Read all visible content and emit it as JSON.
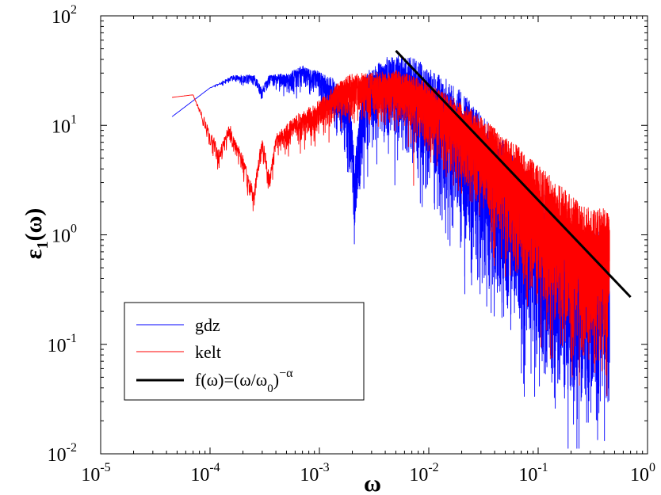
{
  "chart_data": {
    "type": "line",
    "xscale": "log",
    "yscale": "log",
    "xlim": [
      1e-05,
      1
    ],
    "ylim": [
      0.01,
      100
    ],
    "xticks": [
      {
        "base": "10",
        "exp": "-5",
        "value": 1e-05
      },
      {
        "base": "10",
        "exp": "-4",
        "value": 0.0001
      },
      {
        "base": "10",
        "exp": "-3",
        "value": 0.001
      },
      {
        "base": "10",
        "exp": "-2",
        "value": 0.01
      },
      {
        "base": "10",
        "exp": "-1",
        "value": 0.1
      },
      {
        "base": "10",
        "exp": "0",
        "value": 1
      }
    ],
    "yticks": [
      {
        "base": "10",
        "exp": "-2",
        "value": 0.01
      },
      {
        "base": "10",
        "exp": "-1",
        "value": 0.1
      },
      {
        "base": "10",
        "exp": "0",
        "value": 1
      },
      {
        "base": "10",
        "exp": "1",
        "value": 10
      },
      {
        "base": "10",
        "exp": "2",
        "value": 100
      }
    ],
    "xlabel": "ω",
    "ylabel_main": "ε",
    "ylabel_sub": "1",
    "ylabel_rest": "(ω)",
    "grid": false,
    "legend_position": "lower-left",
    "series": [
      {
        "name": "gdz",
        "color": "#0000ff",
        "style": "noisy",
        "points": [
          [
            4.5e-05,
            12
          ],
          [
            0.0001,
            22
          ],
          [
            0.00016,
            27
          ],
          [
            0.00025,
            27
          ],
          [
            0.0003,
            20
          ],
          [
            0.00035,
            27
          ],
          [
            0.0005,
            26
          ],
          [
            0.0007,
            30
          ],
          [
            0.001,
            25
          ],
          [
            0.0013,
            20
          ],
          [
            0.0016,
            14
          ],
          [
            0.0019,
            10
          ],
          [
            0.0021,
            2.5
          ],
          [
            0.0025,
            14
          ],
          [
            0.003,
            20
          ],
          [
            0.004,
            22
          ],
          [
            0.006,
            22
          ],
          [
            0.008,
            18
          ],
          [
            0.01,
            14
          ],
          [
            0.015,
            10
          ],
          [
            0.02,
            7
          ],
          [
            0.03,
            4
          ],
          [
            0.05,
            2
          ],
          [
            0.07,
            1.2
          ],
          [
            0.1,
            0.8
          ],
          [
            0.15,
            0.5
          ],
          [
            0.2,
            0.35
          ],
          [
            0.3,
            0.3
          ],
          [
            0.45,
            0.35
          ]
        ],
        "noise": [
          0,
          0,
          0.1,
          0.15,
          0.2,
          0.15,
          0.25,
          0.3,
          0.4,
          0.6,
          0.8,
          1.0,
          1.2,
          1.2,
          1.0,
          1.2,
          1.3,
          1.5,
          1.6,
          1.8,
          2.0,
          2.2,
          2.3,
          2.3,
          2.3,
          2.3,
          2.3,
          2.3,
          2.3
        ]
      },
      {
        "name": "kelt",
        "color": "#ff0000",
        "style": "noisy",
        "points": [
          [
            4.5e-05,
            18
          ],
          [
            7e-05,
            19
          ],
          [
            0.0001,
            8
          ],
          [
            0.00012,
            5.2
          ],
          [
            0.00015,
            9
          ],
          [
            0.0002,
            4.5
          ],
          [
            0.00025,
            2.2
          ],
          [
            0.0003,
            7
          ],
          [
            0.00035,
            3
          ],
          [
            0.0004,
            7
          ],
          [
            0.0006,
            10
          ],
          [
            0.001,
            13
          ],
          [
            0.0015,
            18
          ],
          [
            0.002,
            22
          ],
          [
            0.003,
            22
          ],
          [
            0.005,
            22
          ],
          [
            0.008,
            18
          ],
          [
            0.01,
            15
          ],
          [
            0.02,
            9
          ],
          [
            0.03,
            6
          ],
          [
            0.05,
            3.5
          ],
          [
            0.07,
            2.5
          ],
          [
            0.1,
            1.7
          ],
          [
            0.15,
            1.1
          ],
          [
            0.2,
            0.8
          ],
          [
            0.3,
            0.6
          ],
          [
            0.45,
            0.6
          ]
        ],
        "noise": [
          0,
          0,
          0.3,
          0.3,
          0.3,
          0.3,
          0.3,
          0.3,
          0.3,
          0.3,
          0.4,
          0.5,
          0.6,
          0.6,
          0.6,
          0.7,
          0.8,
          0.9,
          1.1,
          1.3,
          1.5,
          1.7,
          1.8,
          1.9,
          2.0,
          2.0,
          2.0
        ]
      },
      {
        "name": "f(ω)=(ω/ω0)^−α",
        "color": "#000000",
        "style": "line",
        "points": [
          [
            0.005,
            48
          ],
          [
            0.7,
            0.27
          ]
        ]
      }
    ],
    "legend": {
      "items": [
        {
          "text": "gdz",
          "color": "#0000ff",
          "width": 1
        },
        {
          "text": "kelt",
          "color": "#ff0000",
          "width": 1
        },
        {
          "text_main": "f(ω)=(ω/ω",
          "text_sub": "0",
          "text_close": ")",
          "text_sup": "−α",
          "color": "#000000",
          "width": 3
        }
      ]
    }
  }
}
